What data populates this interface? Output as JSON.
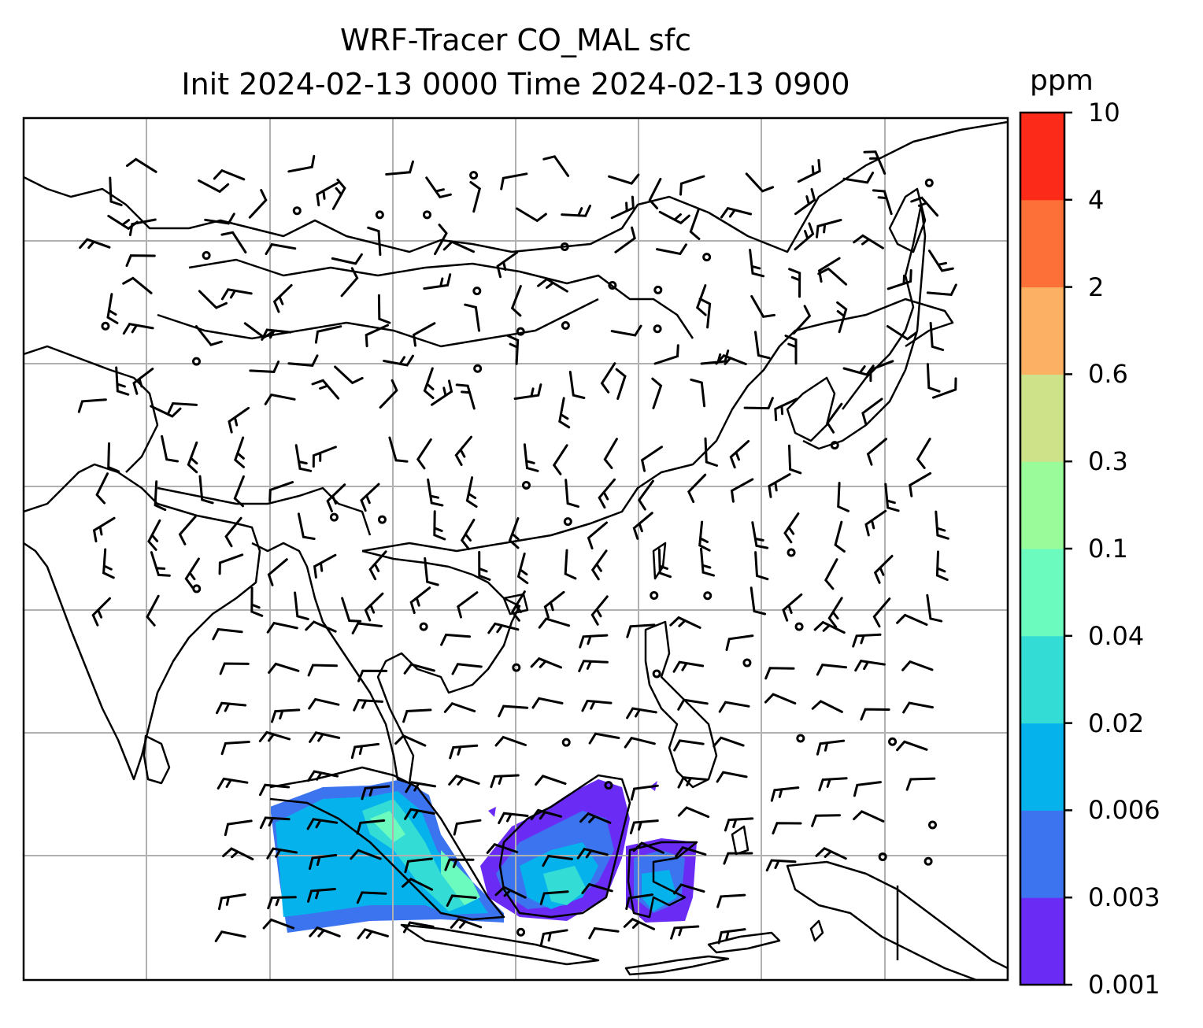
{
  "title": {
    "line1": "WRF-Tracer CO_MAL sfc",
    "line2": "Init 2024-02-13 0000 Time 2024-02-13 0900"
  },
  "colorbar": {
    "unit": "ppm",
    "ticks": [
      "0.001",
      "0.003",
      "0.006",
      "0.02",
      "0.04",
      "0.1",
      "0.3",
      "0.6",
      "2",
      "4",
      "10"
    ],
    "colors": [
      "#6a2cf5",
      "#3c74f0",
      "#06b2ec",
      "#33dcd5",
      "#6cfbbf",
      "#99fb9a",
      "#cee28a",
      "#fcb064",
      "#fd7038",
      "#fc2a18"
    ]
  },
  "map": {
    "region": "South and East Asia / Maritime Continent",
    "field": "CO_MAL surface tracer concentration",
    "overlay": "wind barbs",
    "gridlines": true
  }
}
